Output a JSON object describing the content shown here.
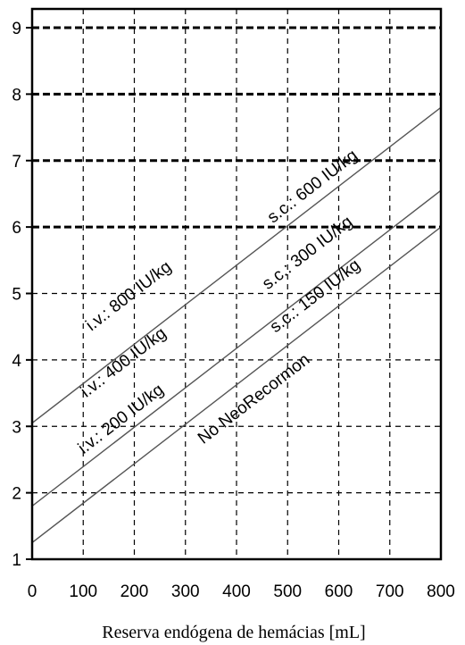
{
  "chart_data": {
    "type": "line",
    "title": "",
    "xlabel": "Reserva endógena de hemácias [mL]",
    "ylabel": "",
    "xlim": [
      0,
      800
    ],
    "ylim": [
      1,
      9.3
    ],
    "x_ticks": [
      0,
      100,
      200,
      300,
      400,
      500,
      600,
      700,
      800
    ],
    "y_ticks": [
      1,
      2,
      3,
      4,
      5,
      6,
      7,
      8,
      9
    ],
    "grid": "dashed; heavier dashes at y = 6, 7, 8, 9",
    "lines": [
      {
        "x": [
          0,
          800
        ],
        "y": [
          3.05,
          7.8
        ]
      },
      {
        "x": [
          0,
          800
        ],
        "y": [
          1.8,
          6.55
        ]
      },
      {
        "x": [
          0,
          800
        ],
        "y": [
          1.25,
          6.0
        ]
      }
    ],
    "annotations": [
      {
        "text": "i.v.: 800 IU/kg",
        "x": 195,
        "y": 4.9
      },
      {
        "text": "s.c.: 600 IU/kg",
        "x": 555,
        "y": 6.55
      },
      {
        "text": "i.v.: 400 IU/kg",
        "x": 185,
        "y": 3.9
      },
      {
        "text": "s.c.: 300 IU/kg",
        "x": 545,
        "y": 5.55
      },
      {
        "text": "i.v.: 200 IU/kg",
        "x": 180,
        "y": 3.05
      },
      {
        "text": "s.c.: 150 IU/kg",
        "x": 560,
        "y": 4.9
      },
      {
        "text": "No NeoRecormon",
        "x": 440,
        "y": 3.35
      }
    ],
    "colors": {
      "line": "#555555",
      "grid": "#000000",
      "text": "#000000"
    }
  }
}
